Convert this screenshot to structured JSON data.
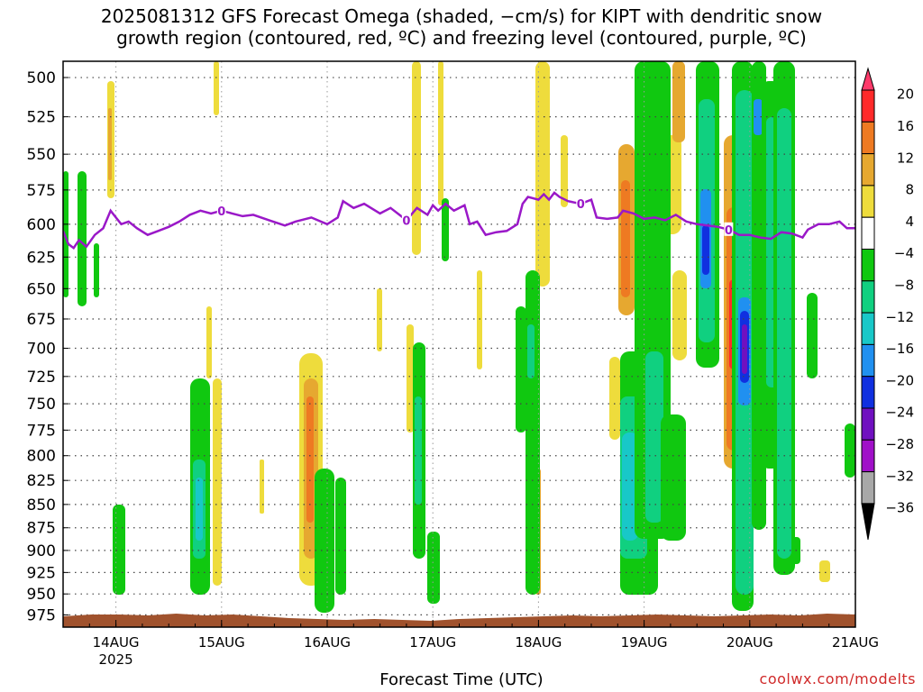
{
  "title_line1": "2025081312 GFS Forecast Omega (shaded, −cm/s) for KIPT with dendritic snow",
  "title_line2": "growth region (contoured, red, ºC) and freezing level (contoured, purple, ºC)",
  "xlabel": "Forecast Time (UTC)",
  "credit": "coolwx.com/modelts",
  "chart_data": {
    "type": "heatmap",
    "x_ticks": [
      "14AUG",
      "15AUG",
      "16AUG",
      "17AUG",
      "18AUG",
      "19AUG",
      "20AUG",
      "21AUG"
    ],
    "x_year_label": "2025",
    "y_ticks": [
      500,
      525,
      550,
      575,
      600,
      625,
      650,
      675,
      700,
      725,
      750,
      775,
      800,
      825,
      850,
      875,
      900,
      925,
      950,
      975
    ],
    "y_range": [
      490,
      990
    ],
    "y_log": true,
    "x_range_days": [
      13.5,
      21.0
    ],
    "grid": true,
    "colorbar": {
      "labels": [
        "20",
        "16",
        "12",
        "8",
        "4",
        "−4",
        "−8",
        "−12",
        "−16",
        "−20",
        "−24",
        "−28",
        "−32",
        "−36"
      ],
      "colors": [
        "#ff3a6a",
        "#ff2a2a",
        "#ee7a22",
        "#e6a830",
        "#eedc3c",
        "#ffffff",
        "#10c810",
        "#10d080",
        "#18c8c8",
        "#2090f0",
        "#1030e0",
        "#7010c0",
        "#a010c8",
        "#a8a8a8",
        "#000000"
      ]
    },
    "freezing_level_label": "0",
    "freezing_level": [
      [
        13.5,
        605
      ],
      [
        13.55,
        615
      ],
      [
        13.6,
        618
      ],
      [
        13.65,
        612
      ],
      [
        13.72,
        617
      ],
      [
        13.8,
        608
      ],
      [
        13.88,
        603
      ],
      [
        13.95,
        590
      ],
      [
        14.0,
        595
      ],
      [
        14.05,
        600
      ],
      [
        14.12,
        598
      ],
      [
        14.2,
        603
      ],
      [
        14.3,
        608
      ],
      [
        14.4,
        605
      ],
      [
        14.5,
        602
      ],
      [
        14.6,
        598
      ],
      [
        14.7,
        593
      ],
      [
        14.8,
        590
      ],
      [
        14.9,
        592
      ],
      [
        15.0,
        590
      ],
      [
        15.1,
        592
      ],
      [
        15.2,
        594
      ],
      [
        15.3,
        593
      ],
      [
        15.45,
        597
      ],
      [
        15.6,
        601
      ],
      [
        15.7,
        598
      ],
      [
        15.85,
        595
      ],
      [
        16.0,
        600
      ],
      [
        16.1,
        595
      ],
      [
        16.15,
        583
      ],
      [
        16.25,
        588
      ],
      [
        16.35,
        585
      ],
      [
        16.5,
        592
      ],
      [
        16.6,
        588
      ],
      [
        16.75,
        597
      ],
      [
        16.85,
        588
      ],
      [
        16.95,
        593
      ],
      [
        17.0,
        586
      ],
      [
        17.05,
        590
      ],
      [
        17.12,
        585
      ],
      [
        17.2,
        590
      ],
      [
        17.3,
        586
      ],
      [
        17.35,
        600
      ],
      [
        17.42,
        598
      ],
      [
        17.5,
        608
      ],
      [
        17.6,
        606
      ],
      [
        17.7,
        605
      ],
      [
        17.8,
        600
      ],
      [
        17.85,
        585
      ],
      [
        17.9,
        580
      ],
      [
        18.0,
        582
      ],
      [
        18.05,
        578
      ],
      [
        18.1,
        582
      ],
      [
        18.15,
        577
      ],
      [
        18.2,
        580
      ],
      [
        18.28,
        583
      ],
      [
        18.4,
        585
      ],
      [
        18.5,
        582
      ],
      [
        18.55,
        595
      ],
      [
        18.65,
        596
      ],
      [
        18.75,
        595
      ],
      [
        18.8,
        590
      ],
      [
        18.9,
        592
      ],
      [
        19.0,
        596
      ],
      [
        19.1,
        595
      ],
      [
        19.2,
        597
      ],
      [
        19.3,
        593
      ],
      [
        19.4,
        598
      ],
      [
        19.5,
        600
      ],
      [
        19.6,
        601
      ],
      [
        19.7,
        602
      ],
      [
        19.8,
        604
      ],
      [
        19.9,
        608
      ],
      [
        20.0,
        608
      ],
      [
        20.1,
        610
      ],
      [
        20.2,
        611
      ],
      [
        20.3,
        606
      ],
      [
        20.4,
        607
      ],
      [
        20.5,
        610
      ],
      [
        20.55,
        604
      ],
      [
        20.65,
        600
      ],
      [
        20.75,
        600
      ],
      [
        20.85,
        598
      ],
      [
        20.92,
        603
      ],
      [
        21.0,
        603
      ]
    ]
  }
}
